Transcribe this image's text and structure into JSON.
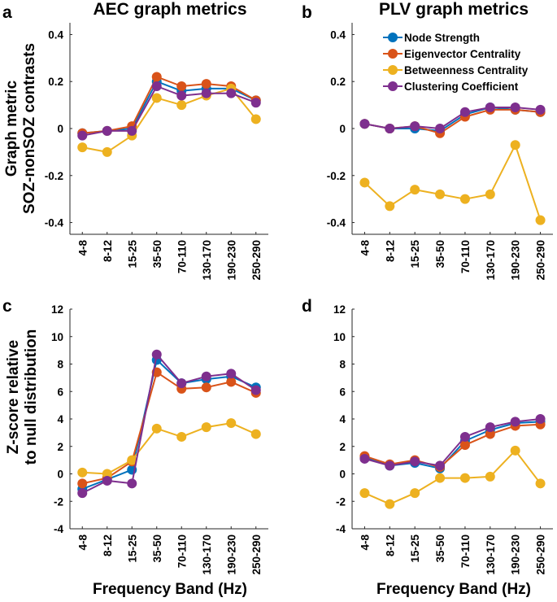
{
  "chart_data": [
    {
      "type": "line",
      "panel": "a",
      "title": "AEC graph metrics",
      "ylabel_lines": [
        "Graph metric",
        "SOZ-nonSOZ contrasts"
      ],
      "xlabel": "",
      "ylim": [
        -0.45,
        0.45
      ],
      "yticks": [
        "-0.4",
        "-0.2",
        "0",
        "0.2",
        "0.4"
      ],
      "ytick_values": [
        -0.4,
        -0.2,
        0,
        0.2,
        0.4
      ],
      "categories": [
        "4-8",
        "8-12",
        "15-25",
        "35-50",
        "70-110",
        "130-170",
        "190-230",
        "250-290"
      ],
      "series": [
        {
          "name": "Node Strength",
          "color": "#0072BD",
          "values": [
            -0.02,
            -0.01,
            0.0,
            0.2,
            0.16,
            0.17,
            0.17,
            0.12
          ]
        },
        {
          "name": "Eigenvector Centrality",
          "color": "#D95319",
          "values": [
            -0.02,
            -0.01,
            0.01,
            0.22,
            0.18,
            0.19,
            0.18,
            0.12
          ]
        },
        {
          "name": "Betweenness Centrality",
          "color": "#EDB120",
          "values": [
            -0.08,
            -0.1,
            -0.03,
            0.13,
            0.1,
            0.14,
            0.17,
            0.04
          ]
        },
        {
          "name": "Clustering Coefficient",
          "color": "#7E2F8E",
          "values": [
            -0.03,
            -0.01,
            -0.01,
            0.18,
            0.14,
            0.15,
            0.15,
            0.11
          ]
        }
      ],
      "legend": "none"
    },
    {
      "type": "line",
      "panel": "b",
      "title": "PLV graph metrics",
      "ylabel_lines": [],
      "xlabel": "",
      "ylim": [
        -0.45,
        0.45
      ],
      "yticks": [
        "-0.4",
        "-0.2",
        "0",
        "0.2",
        "0.4"
      ],
      "ytick_values": [
        -0.4,
        -0.2,
        0,
        0.2,
        0.4
      ],
      "categories": [
        "4-8",
        "8-12",
        "15-25",
        "35-50",
        "70-110",
        "130-170",
        "190-230",
        "250-290"
      ],
      "series": [
        {
          "name": "Node Strength",
          "color": "#0072BD",
          "values": [
            0.02,
            0.0,
            0.0,
            -0.01,
            0.06,
            0.09,
            0.08,
            0.07
          ]
        },
        {
          "name": "Eigenvector Centrality",
          "color": "#D95319",
          "values": [
            0.02,
            0.0,
            0.01,
            -0.02,
            0.05,
            0.08,
            0.08,
            0.07
          ]
        },
        {
          "name": "Betweenness Centrality",
          "color": "#EDB120",
          "values": [
            -0.23,
            -0.33,
            -0.26,
            -0.28,
            -0.3,
            -0.28,
            -0.07,
            -0.39
          ]
        },
        {
          "name": "Clustering Coefficient",
          "color": "#7E2F8E",
          "values": [
            0.02,
            0.0,
            0.01,
            0.0,
            0.07,
            0.09,
            0.09,
            0.08
          ]
        }
      ],
      "legend": "top-right"
    },
    {
      "type": "line",
      "panel": "c",
      "title": "",
      "ylabel_lines": [
        "Z-score relative",
        "to null distribution"
      ],
      "xlabel": "Frequency Band (Hz)",
      "ylim": [
        -4,
        12
      ],
      "yticks": [
        "-4",
        "-2",
        "0",
        "2",
        "4",
        "6",
        "8",
        "10",
        "12"
      ],
      "ytick_values": [
        -4,
        -2,
        0,
        2,
        4,
        6,
        8,
        10,
        12
      ],
      "categories": [
        "4-8",
        "8-12",
        "15-25",
        "35-50",
        "70-110",
        "130-170",
        "190-230",
        "250-290"
      ],
      "series": [
        {
          "name": "Node Strength",
          "color": "#0072BD",
          "values": [
            -1.1,
            -0.4,
            0.3,
            8.3,
            6.6,
            6.9,
            7.1,
            6.3
          ]
        },
        {
          "name": "Eigenvector Centrality",
          "color": "#D95319",
          "values": [
            -0.7,
            -0.3,
            0.9,
            7.4,
            6.2,
            6.3,
            6.7,
            5.9
          ]
        },
        {
          "name": "Betweenness Centrality",
          "color": "#EDB120",
          "values": [
            0.1,
            0.0,
            1.0,
            3.3,
            2.7,
            3.4,
            3.7,
            2.9
          ]
        },
        {
          "name": "Clustering Coefficient",
          "color": "#7E2F8E",
          "values": [
            -1.4,
            -0.5,
            -0.7,
            8.7,
            6.6,
            7.1,
            7.3,
            6.1
          ]
        }
      ],
      "legend": "none"
    },
    {
      "type": "line",
      "panel": "d",
      "title": "",
      "ylabel_lines": [],
      "xlabel": "Frequency Band (Hz)",
      "ylim": [
        -4,
        12
      ],
      "yticks": [
        "-4",
        "-2",
        "0",
        "2",
        "4",
        "6",
        "8",
        "10",
        "12"
      ],
      "ytick_values": [
        -4,
        -2,
        0,
        2,
        4,
        6,
        8,
        10,
        12
      ],
      "categories": [
        "4-8",
        "8-12",
        "15-25",
        "35-50",
        "70-110",
        "130-170",
        "190-230",
        "250-290"
      ],
      "series": [
        {
          "name": "Node Strength",
          "color": "#0072BD",
          "values": [
            1.2,
            0.6,
            0.8,
            0.4,
            2.4,
            3.2,
            3.7,
            3.8
          ]
        },
        {
          "name": "Eigenvector Centrality",
          "color": "#D95319",
          "values": [
            1.3,
            0.7,
            1.0,
            0.5,
            2.1,
            2.9,
            3.5,
            3.6
          ]
        },
        {
          "name": "Betweenness Centrality",
          "color": "#EDB120",
          "values": [
            -1.4,
            -2.2,
            -1.4,
            -0.3,
            -0.3,
            -0.2,
            1.7,
            -0.7
          ]
        },
        {
          "name": "Clustering Coefficient",
          "color": "#7E2F8E",
          "values": [
            1.1,
            0.6,
            0.9,
            0.6,
            2.7,
            3.4,
            3.8,
            4.0
          ]
        }
      ],
      "legend": "none"
    }
  ]
}
